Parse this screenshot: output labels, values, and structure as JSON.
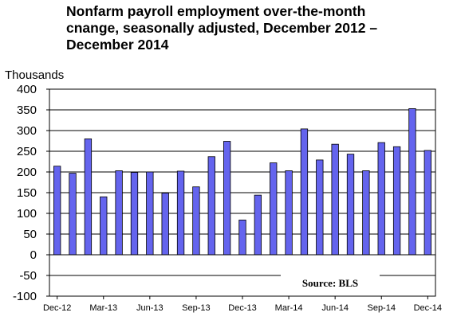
{
  "chart_data": {
    "type": "bar",
    "title_lines": [
      "Nonfarm payroll employment over-the-month",
      "cnange, seasonally adjusted, December 2012 –",
      "December 2014"
    ],
    "ylabel": "Thousands",
    "ylim": [
      -100,
      400
    ],
    "yticks": [
      400,
      350,
      300,
      250,
      200,
      150,
      100,
      50,
      0,
      -50,
      -100
    ],
    "grid": true,
    "x_tick_labels": [
      "Dec-12",
      "Mar-13",
      "Jun-13",
      "Sep-13",
      "Dec-13",
      "Mar-14",
      "Jun-14",
      "Sep-14",
      "Dec-14"
    ],
    "categories": [
      "Dec-12",
      "Jan-13",
      "Feb-13",
      "Mar-13",
      "Apr-13",
      "May-13",
      "Jun-13",
      "Jul-13",
      "Aug-13",
      "Sep-13",
      "Oct-13",
      "Nov-13",
      "Dec-13",
      "Jan-14",
      "Feb-14",
      "Mar-14",
      "Apr-14",
      "May-14",
      "Jun-14",
      "Jul-14",
      "Aug-14",
      "Sep-14",
      "Oct-14",
      "Nov-14",
      "Dec-14"
    ],
    "values": [
      214,
      197,
      280,
      140,
      203,
      199,
      200,
      149,
      202,
      164,
      237,
      274,
      84,
      144,
      222,
      203,
      304,
      229,
      267,
      243,
      203,
      271,
      261,
      353,
      252
    ],
    "bar_color": "#6464ee",
    "annotation": "Source: BLS"
  }
}
